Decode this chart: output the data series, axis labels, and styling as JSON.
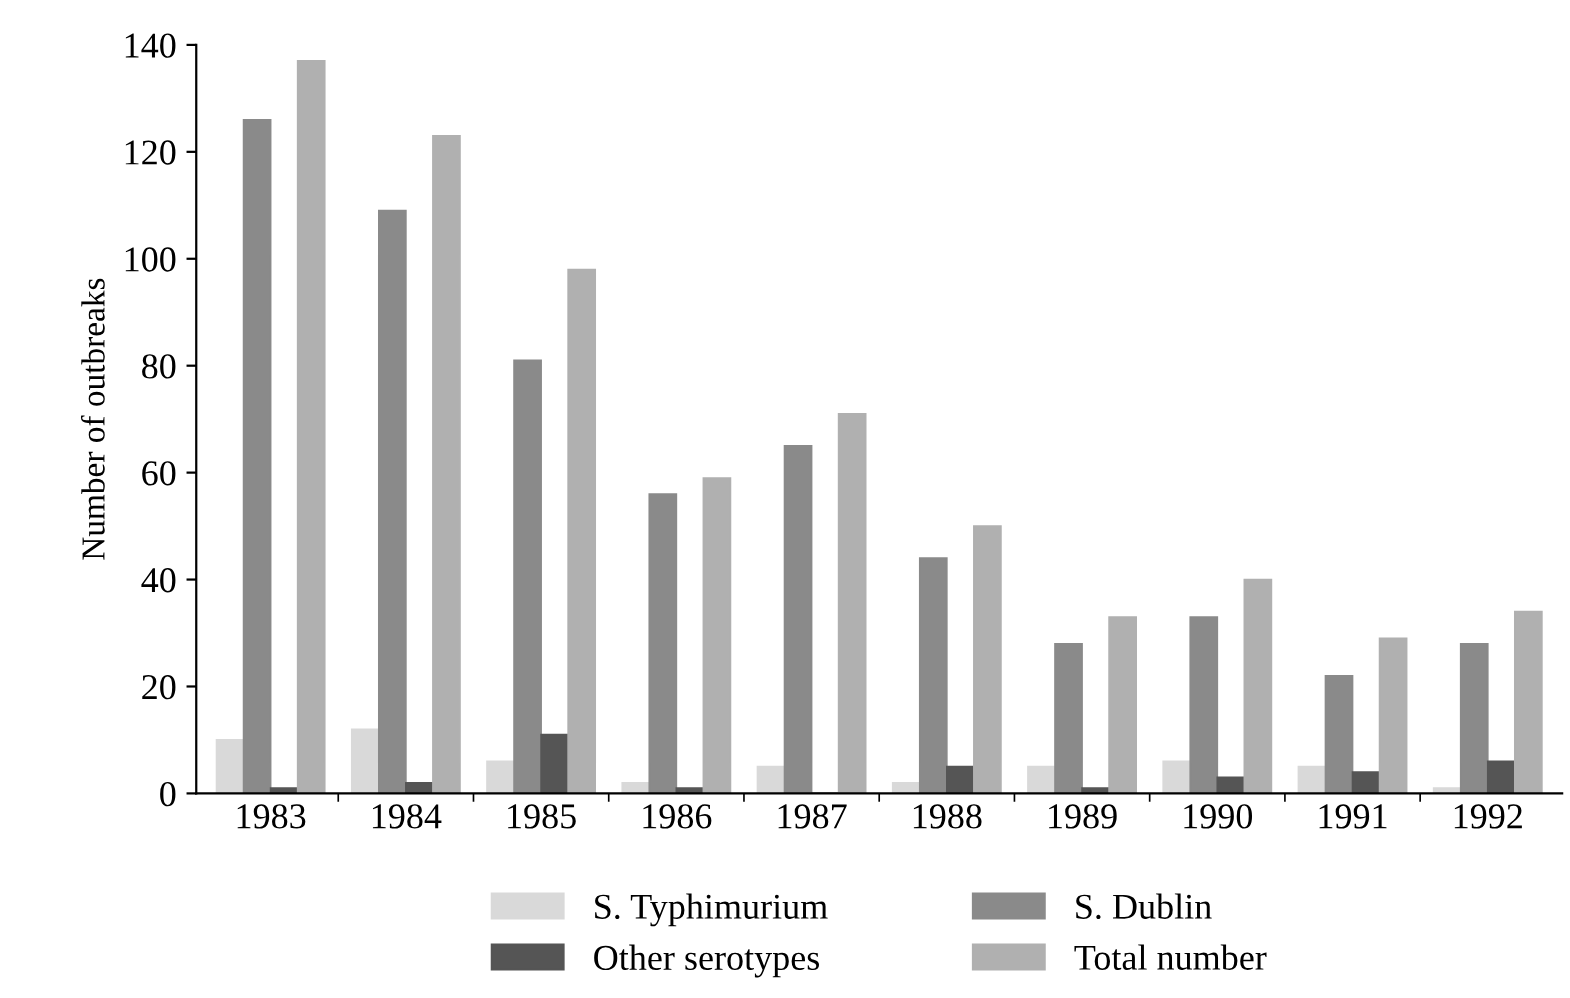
{
  "chart_data": {
    "type": "bar",
    "ylabel": "Number of outbreaks",
    "categories": [
      "1983",
      "1984",
      "1985",
      "1986",
      "1987",
      "1988",
      "1989",
      "1990",
      "1991",
      "1992"
    ],
    "series": [
      {
        "name": "S. Typhimurium",
        "color": "#d9d9d9",
        "values": [
          10,
          12,
          6,
          2,
          5,
          2,
          5,
          6,
          5,
          1
        ]
      },
      {
        "name": "S. Dublin",
        "color": "#8a8a8a",
        "values": [
          126,
          109,
          81,
          56,
          65,
          44,
          28,
          33,
          22,
          28
        ]
      },
      {
        "name": "Other serotypes",
        "color": "#555555",
        "values": [
          1,
          2,
          11,
          1,
          0,
          5,
          1,
          3,
          4,
          6
        ]
      },
      {
        "name": "Total number",
        "color": "#b0b0b0",
        "values": [
          137,
          123,
          98,
          59,
          71,
          50,
          33,
          40,
          29,
          34
        ]
      }
    ],
    "ylim": [
      0,
      140
    ],
    "yticks": [
      0,
      20,
      40,
      60,
      80,
      100,
      120,
      140
    ],
    "grid": false,
    "legend": "bottom"
  }
}
